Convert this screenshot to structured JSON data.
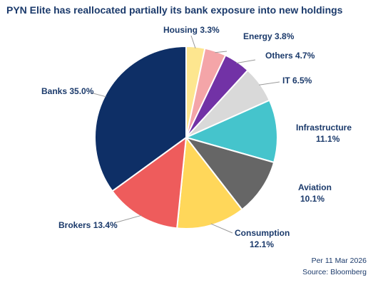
{
  "title": "PYN Elite has reallocated partially its bank exposure into new holdings",
  "footer": {
    "date": "Per 11 Mar 2026",
    "source": "Source: Bloomberg"
  },
  "chart_data": {
    "type": "pie",
    "title": "PYN Elite has reallocated partially its bank exposure into new holdings",
    "start_angle_deg": 0,
    "direction": "clockwise",
    "slices": [
      {
        "name": "Housing",
        "value": 3.3,
        "label": "Housing 3.3%",
        "color": "#fde68f"
      },
      {
        "name": "Energy",
        "value": 3.8,
        "label": "Energy 3.8%",
        "color": "#f4a5a8"
      },
      {
        "name": "Others",
        "value": 4.7,
        "label": "Others 4.7%",
        "color": "#7232a6"
      },
      {
        "name": "IT",
        "value": 6.5,
        "label": "IT 6.5%",
        "color": "#d9d9d9"
      },
      {
        "name": "Infrastructure",
        "value": 11.1,
        "label": "Infrastructure",
        "pct": "11.1%",
        "color": "#45c4cc"
      },
      {
        "name": "Aviation",
        "value": 10.1,
        "label": "Aviation",
        "pct": "10.1%",
        "color": "#666666"
      },
      {
        "name": "Consumption",
        "value": 12.1,
        "label": "Consumption",
        "pct": "12.1%",
        "color": "#ffd75a"
      },
      {
        "name": "Brokers",
        "value": 13.4,
        "label": "Brokers 13.4%",
        "color": "#ee5c5c"
      },
      {
        "name": "Banks",
        "value": 35.0,
        "label": "Banks 35.0%",
        "color": "#0e2f66"
      }
    ]
  }
}
